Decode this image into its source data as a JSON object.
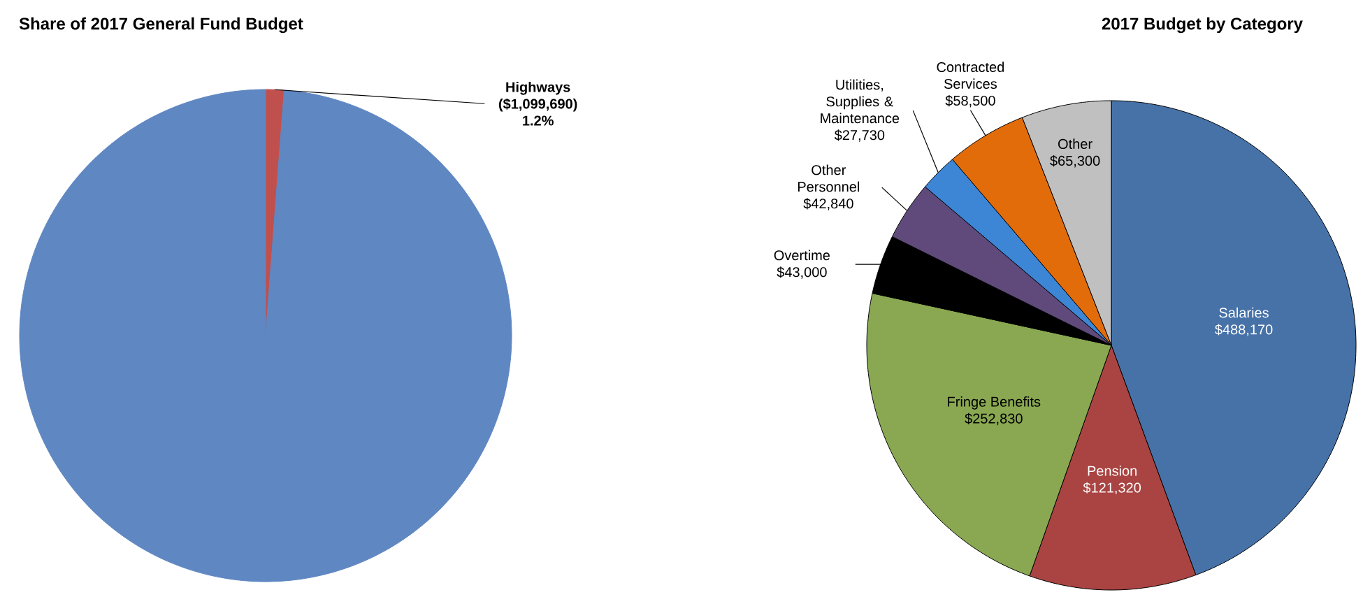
{
  "chart_data": [
    {
      "type": "pie",
      "title": "Share of 2017 General Fund Budget",
      "categories": [
        "Highways ($1,099,690)",
        null
      ],
      "values": [
        1.2,
        98.8
      ],
      "colors": [
        "#c0504d",
        "#5f87c2"
      ],
      "value_labels": [
        "1.2%",
        null
      ]
    },
    {
      "type": "pie",
      "title": "2017 Budget by Category",
      "categories": [
        "Salaries",
        "Pension",
        "Fringe Benefits",
        "Overtime",
        "Other Personnel",
        "Utilities, Supplies & Maintenance",
        "Contracted Services",
        "Other"
      ],
      "values": [
        488170,
        121320,
        252830,
        43000,
        42840,
        27730,
        58500,
        65300
      ],
      "colors": [
        "#4672a8",
        "#a94442",
        "#8aa851",
        "#000000",
        "#5f4a7b",
        "#3d86d6",
        "#e36c0a",
        "#c0c0c0"
      ],
      "value_labels": [
        "$488,170",
        "$121,320",
        "$252,830",
        "$43,000",
        "$42,840",
        "$27,730",
        "$58,500",
        "$65,300"
      ]
    }
  ]
}
